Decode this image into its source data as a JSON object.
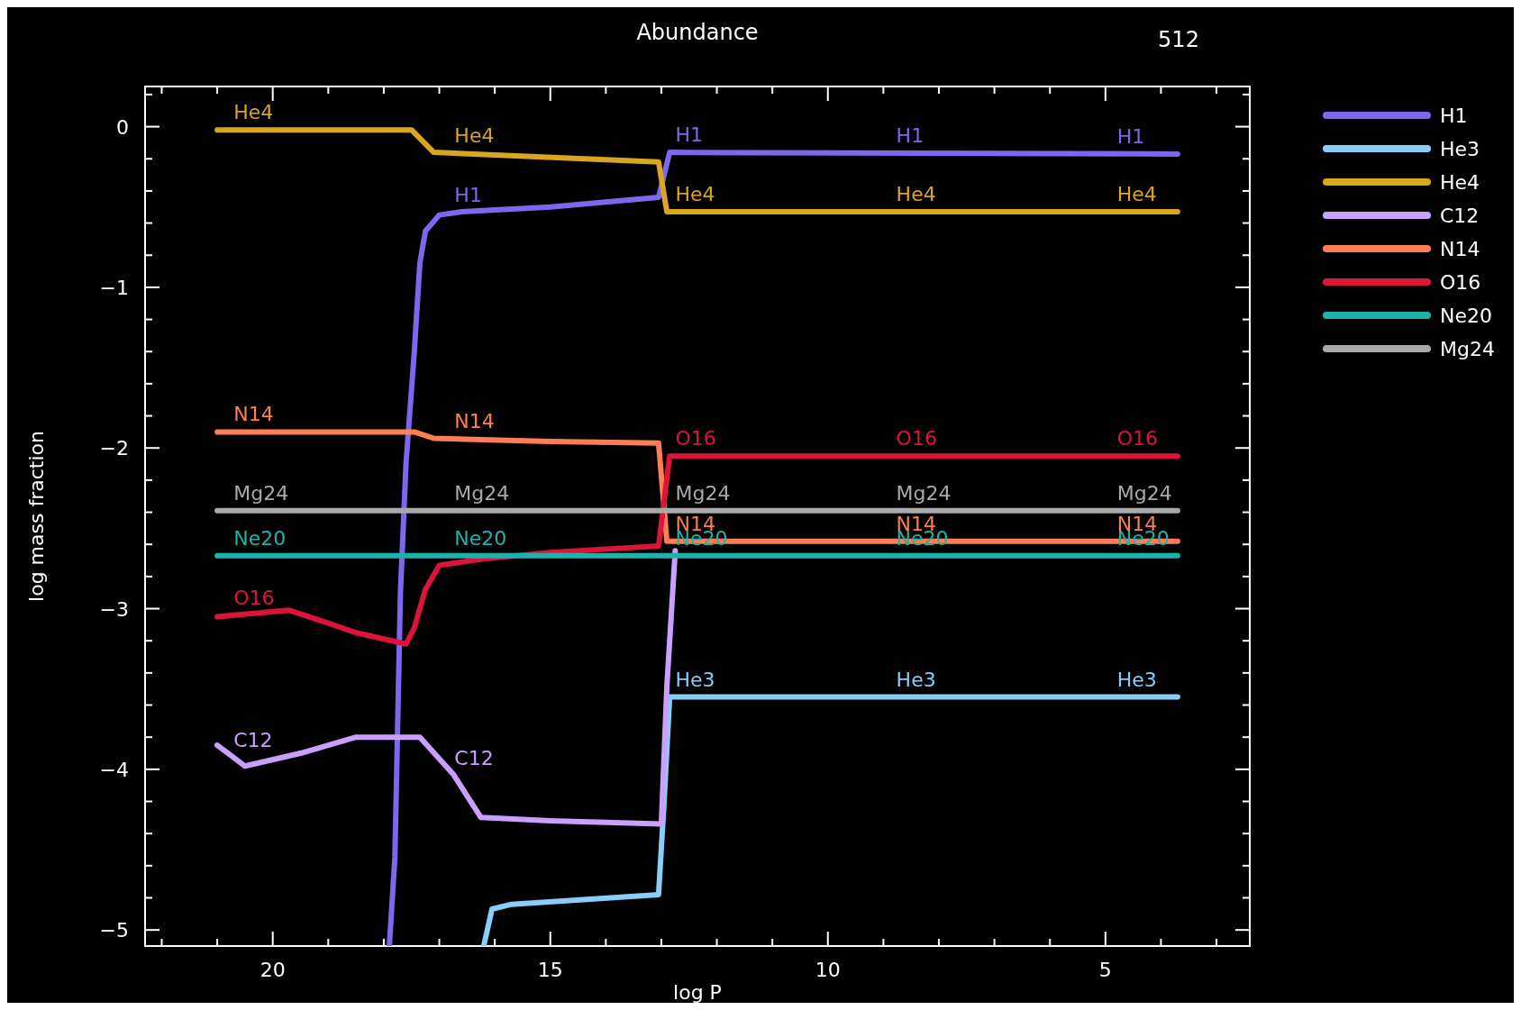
{
  "chart_data": {
    "type": "line",
    "title": "Abundance",
    "xlabel": "log P",
    "ylabel": "log mass fraction",
    "xlim": [
      22.3,
      2.4
    ],
    "ylim": [
      -5.1,
      0.25
    ],
    "xticks": [
      {
        "value": 22,
        "label": null
      },
      {
        "value": 21,
        "label": null
      },
      20,
      {
        "value": 19,
        "label": null
      },
      {
        "value": 18,
        "label": null
      },
      {
        "value": 17,
        "label": null
      },
      {
        "value": 16,
        "label": null
      },
      15,
      {
        "value": 14,
        "label": null
      },
      {
        "value": 13,
        "label": null
      },
      {
        "value": 12,
        "label": null
      },
      {
        "value": 11,
        "label": null
      },
      10,
      {
        "value": 9,
        "label": null
      },
      {
        "value": 8,
        "label": null
      },
      {
        "value": 7,
        "label": null
      },
      {
        "value": 6,
        "label": null
      },
      5,
      {
        "value": 4,
        "label": null
      },
      {
        "value": 3,
        "label": null
      }
    ],
    "yticks": [
      {
        "value": -5,
        "label": "−5"
      },
      {
        "value": -4.8,
        "label": null
      },
      {
        "value": -4.6,
        "label": null
      },
      {
        "value": -4.4,
        "label": null
      },
      {
        "value": -4.2,
        "label": null
      },
      {
        "value": -4,
        "label": "−4"
      },
      {
        "value": -3.8,
        "label": null
      },
      {
        "value": -3.6,
        "label": null
      },
      {
        "value": -3.4,
        "label": null
      },
      {
        "value": -3.2,
        "label": null
      },
      {
        "value": -3,
        "label": "−3"
      },
      {
        "value": -2.8,
        "label": null
      },
      {
        "value": -2.6,
        "label": null
      },
      {
        "value": -2.4,
        "label": null
      },
      {
        "value": -2.2,
        "label": null
      },
      {
        "value": -2,
        "label": "−2"
      },
      {
        "value": -1.8,
        "label": null
      },
      {
        "value": -1.6,
        "label": null
      },
      {
        "value": -1.4,
        "label": null
      },
      {
        "value": -1.2,
        "label": null
      },
      {
        "value": -1,
        "label": "−1"
      },
      {
        "value": -0.8,
        "label": null
      },
      {
        "value": -0.6,
        "label": null
      },
      {
        "value": -0.4,
        "label": null
      },
      {
        "value": -0.2,
        "label": null
      },
      0,
      {
        "value": 0.2,
        "label": null
      }
    ],
    "grid": false,
    "legend": "top right",
    "line_style": "solid",
    "series": [
      {
        "name": "H1",
        "color": "#7b68ee",
        "x": [
          17.9,
          17.8,
          17.7,
          17.6,
          17.45,
          17.35,
          17.25,
          17.0,
          16.6,
          15,
          13.05,
          12.85,
          3.7
        ],
        "values": [
          -5.1,
          -4.55,
          -2.9,
          -2.1,
          -1.4,
          -0.85,
          -0.65,
          -0.55,
          -0.53,
          -0.5,
          -0.44,
          -0.16,
          -0.17
        ]
      },
      {
        "name": "He3",
        "color": "#87cefa",
        "x": [
          16.2,
          16.05,
          15.7,
          13.05,
          12.95,
          12.85,
          3.7
        ],
        "values": [
          -5.1,
          -4.87,
          -4.84,
          -4.78,
          -4.2,
          -3.55,
          -3.55
        ]
      },
      {
        "name": "He4",
        "color": "#daa520",
        "x": [
          21,
          17.5,
          17.1,
          13.05,
          12.9,
          3.7
        ],
        "values": [
          -0.02,
          -0.02,
          -0.16,
          -0.22,
          -0.53,
          -0.53
        ]
      },
      {
        "name": "C12",
        "color": "#c9a0ff",
        "x": [
          21,
          20.5,
          19.5,
          18.5,
          17.35,
          16.75,
          16.25,
          15,
          13.0,
          12.9,
          12.75
        ],
        "values": [
          -3.85,
          -3.98,
          -3.9,
          -3.8,
          -3.8,
          -4.03,
          -4.3,
          -4.32,
          -4.34,
          -3.48,
          -2.64
        ]
      },
      {
        "name": "N14",
        "color": "#ff7f50",
        "x": [
          21,
          17.45,
          17.1,
          15,
          13.05,
          12.9,
          3.7
        ],
        "values": [
          -1.9,
          -1.9,
          -1.94,
          -1.96,
          -1.97,
          -2.58,
          -2.58
        ]
      },
      {
        "name": "O16",
        "color": "#dc143c",
        "x": [
          21,
          19.7,
          19.0,
          18.5,
          17.6,
          17.45,
          17.25,
          17.0,
          16.2,
          15,
          13.05,
          12.85,
          3.7
        ],
        "values": [
          -3.05,
          -3.01,
          -3.09,
          -3.15,
          -3.22,
          -3.12,
          -2.88,
          -2.73,
          -2.69,
          -2.65,
          -2.61,
          -2.05,
          -2.05
        ]
      },
      {
        "name": "Ne20",
        "color": "#20b2aa",
        "x": [
          21,
          3.7
        ],
        "values": [
          -2.67,
          -2.67
        ]
      },
      {
        "name": "Mg24",
        "color": "#a9a9a9",
        "x": [
          21,
          3.7
        ],
        "values": [
          -2.39,
          -2.39
        ]
      }
    ],
    "annotations": [
      "512"
    ]
  }
}
